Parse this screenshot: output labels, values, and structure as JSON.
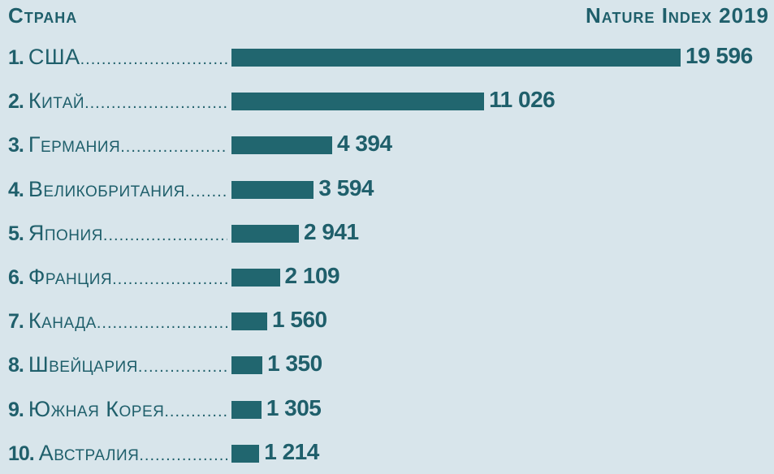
{
  "chart_data": {
    "type": "bar",
    "orientation": "horizontal",
    "header_left": "Страна",
    "header_right": "Nature Index 2019",
    "categories": [
      "США",
      "Китай",
      "Германия",
      "Великобритания",
      "Япония",
      "Франция",
      "Канада",
      "Швейцария",
      "Южная Корея",
      "Австралия"
    ],
    "ranks": [
      "1.",
      "2.",
      "3.",
      "4.",
      "5.",
      "6.",
      "7.",
      "8.",
      "9.",
      "10."
    ],
    "values": [
      19596,
      11026,
      4394,
      3594,
      2941,
      2109,
      1560,
      1350,
      1305,
      1214
    ],
    "value_labels": [
      "19 596",
      "11 026",
      "4 394",
      "3 594",
      "2 941",
      "2 109",
      "1 560",
      "1 350",
      "1 305",
      "1 214"
    ],
    "xlim": [
      0,
      19596
    ],
    "grid": false,
    "colors": {
      "bar": "#21666f",
      "text": "#1f5f6b",
      "background": "#d8e5eb"
    }
  }
}
